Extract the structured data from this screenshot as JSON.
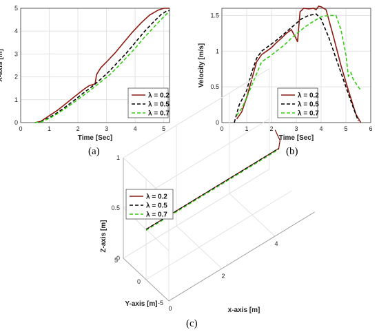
{
  "captions": {
    "a": "(a)",
    "b": "(b)",
    "c": "(c)"
  },
  "series_colors": {
    "lambda_0_2": "#8b1a10",
    "lambda_0_5": "#000000",
    "lambda_0_7": "#33cc11"
  },
  "chart_data": [
    {
      "id": "a",
      "type": "line",
      "title": "",
      "xlabel": "Time [Sec]",
      "ylabel": "X-axis [m]",
      "xlim": [
        0,
        5.2
      ],
      "ylim": [
        0,
        5
      ],
      "xticks": [
        "0",
        "1",
        "2",
        "3",
        "4",
        "5"
      ],
      "yticks": [
        "0",
        "1",
        "2",
        "3",
        "4",
        "5"
      ],
      "grid": true,
      "legend": "bottom-right",
      "series": [
        {
          "name": "λ = 0.2",
          "style": "solid",
          "x": [
            0.5,
            0.7,
            1.0,
            1.3,
            1.6,
            1.9,
            2.2,
            2.4,
            2.5,
            2.6,
            2.65,
            2.8,
            3.0,
            3.3,
            3.6,
            3.9,
            4.2,
            4.5,
            4.8,
            5.0,
            5.2
          ],
          "y": [
            0,
            0.05,
            0.3,
            0.55,
            0.85,
            1.15,
            1.45,
            1.62,
            1.65,
            1.7,
            2.1,
            2.4,
            2.65,
            3.05,
            3.5,
            3.95,
            4.35,
            4.7,
            4.92,
            5.0,
            5.0
          ]
        },
        {
          "name": "λ = 0.5",
          "style": "dashed",
          "x": [
            0.5,
            0.7,
            1.0,
            1.3,
            1.6,
            1.9,
            2.2,
            2.5,
            2.8,
            3.1,
            3.4,
            3.7,
            4.0,
            4.3,
            4.6,
            4.9,
            5.1,
            5.2
          ],
          "y": [
            0,
            0.03,
            0.22,
            0.45,
            0.72,
            1.0,
            1.3,
            1.58,
            1.9,
            2.25,
            2.65,
            3.05,
            3.5,
            3.95,
            4.35,
            4.72,
            4.88,
            4.9
          ]
        },
        {
          "name": "λ = 0.7",
          "style": "dashed",
          "x": [
            0.5,
            0.7,
            1.0,
            1.3,
            1.6,
            1.9,
            2.2,
            2.5,
            2.8,
            3.1,
            3.4,
            3.7,
            4.0,
            4.3,
            4.6,
            4.9,
            5.1,
            5.2
          ],
          "y": [
            0,
            0.02,
            0.18,
            0.4,
            0.65,
            0.92,
            1.2,
            1.48,
            1.78,
            2.08,
            2.45,
            2.85,
            3.25,
            3.7,
            4.1,
            4.5,
            4.75,
            4.85
          ]
        }
      ]
    },
    {
      "id": "b",
      "type": "line",
      "title": "",
      "xlabel": "Time [Sec]",
      "ylabel": "Velocity [m/s]",
      "xlim": [
        0,
        6
      ],
      "ylim": [
        0,
        1.6
      ],
      "xticks": [
        "0",
        "1",
        "2",
        "3",
        "4",
        "5",
        "6"
      ],
      "yticks": [
        "0",
        "0.5",
        "1",
        "1.5"
      ],
      "grid": true,
      "legend": "bottom-right",
      "series": [
        {
          "name": "λ = 0.2",
          "style": "solid",
          "x": [
            0.6,
            0.8,
            1.0,
            1.2,
            1.4,
            1.6,
            1.8,
            2.0,
            2.2,
            2.4,
            2.6,
            2.8,
            3.0,
            3.05,
            3.15,
            3.3,
            3.5,
            3.7,
            3.8,
            3.9,
            4.0,
            4.2,
            4.5,
            4.8,
            5.1,
            5.4,
            5.6
          ],
          "y": [
            0.05,
            0.15,
            0.35,
            0.6,
            0.85,
            0.95,
            1.0,
            1.05,
            1.12,
            1.18,
            1.25,
            1.3,
            1.17,
            1.13,
            1.55,
            1.6,
            1.59,
            1.6,
            1.58,
            1.63,
            1.62,
            1.58,
            1.2,
            0.8,
            0.45,
            0.12,
            0.0
          ]
        },
        {
          "name": "λ = 0.5",
          "style": "dashed",
          "x": [
            0.5,
            0.7,
            1.0,
            1.2,
            1.4,
            1.6,
            1.8,
            2.0,
            2.3,
            2.6,
            2.9,
            3.2,
            3.5,
            3.8,
            4.0,
            4.3,
            4.6,
            4.9,
            5.2,
            5.5
          ],
          "y": [
            0.0,
            0.25,
            0.45,
            0.7,
            0.9,
            1.0,
            1.05,
            1.1,
            1.18,
            1.27,
            1.36,
            1.45,
            1.5,
            1.52,
            1.45,
            1.2,
            0.9,
            0.6,
            0.3,
            0.02
          ]
        },
        {
          "name": "λ = 0.7",
          "style": "dashed",
          "x": [
            0.6,
            0.8,
            1.0,
            1.3,
            1.6,
            1.9,
            2.2,
            2.5,
            2.8,
            3.1,
            3.4,
            3.7,
            4.0,
            4.3,
            4.6,
            4.8,
            5.0,
            5.1,
            5.2,
            5.3,
            5.4,
            5.6
          ],
          "y": [
            0.1,
            0.2,
            0.35,
            0.6,
            0.85,
            0.92,
            1.0,
            1.08,
            1.18,
            1.27,
            1.35,
            1.42,
            1.48,
            1.5,
            1.5,
            1.3,
            0.95,
            0.65,
            0.7,
            0.6,
            0.55,
            0.45
          ]
        }
      ]
    },
    {
      "id": "c",
      "type": "line",
      "title": "",
      "xlabel": "x-axis [m]",
      "ylabel": "Y-axis [m]",
      "zlabel": "Z-axis [m]",
      "xticks": [
        "0",
        "2",
        "4"
      ],
      "yticks": [
        "5",
        "0",
        "-5"
      ],
      "zticks": [
        "0",
        "0.5",
        "1"
      ],
      "grid": true,
      "legend": "top-left",
      "series": [
        {
          "name": "λ = 0.2",
          "style": "solid",
          "x": [
            0,
            1,
            2,
            3,
            4,
            5,
            5.1,
            5.0
          ],
          "y": [
            0,
            0,
            0,
            0,
            0,
            0,
            0.3,
            0.8
          ],
          "z": [
            0.5,
            0.5,
            0.5,
            0.5,
            0.5,
            0.5,
            0.55,
            0.65
          ]
        },
        {
          "name": "λ = 0.5",
          "style": "dashed",
          "x": [
            0,
            1,
            2,
            3,
            4,
            5
          ],
          "y": [
            0,
            0,
            0,
            0,
            0,
            0
          ],
          "z": [
            0.5,
            0.5,
            0.5,
            0.5,
            0.5,
            0.5
          ]
        },
        {
          "name": "λ = 0.7",
          "style": "dashed",
          "x": [
            0,
            1,
            2,
            3,
            4,
            5
          ],
          "y": [
            0,
            0,
            0,
            0,
            0,
            0
          ],
          "z": [
            0.49,
            0.49,
            0.49,
            0.49,
            0.49,
            0.49
          ]
        }
      ]
    }
  ]
}
